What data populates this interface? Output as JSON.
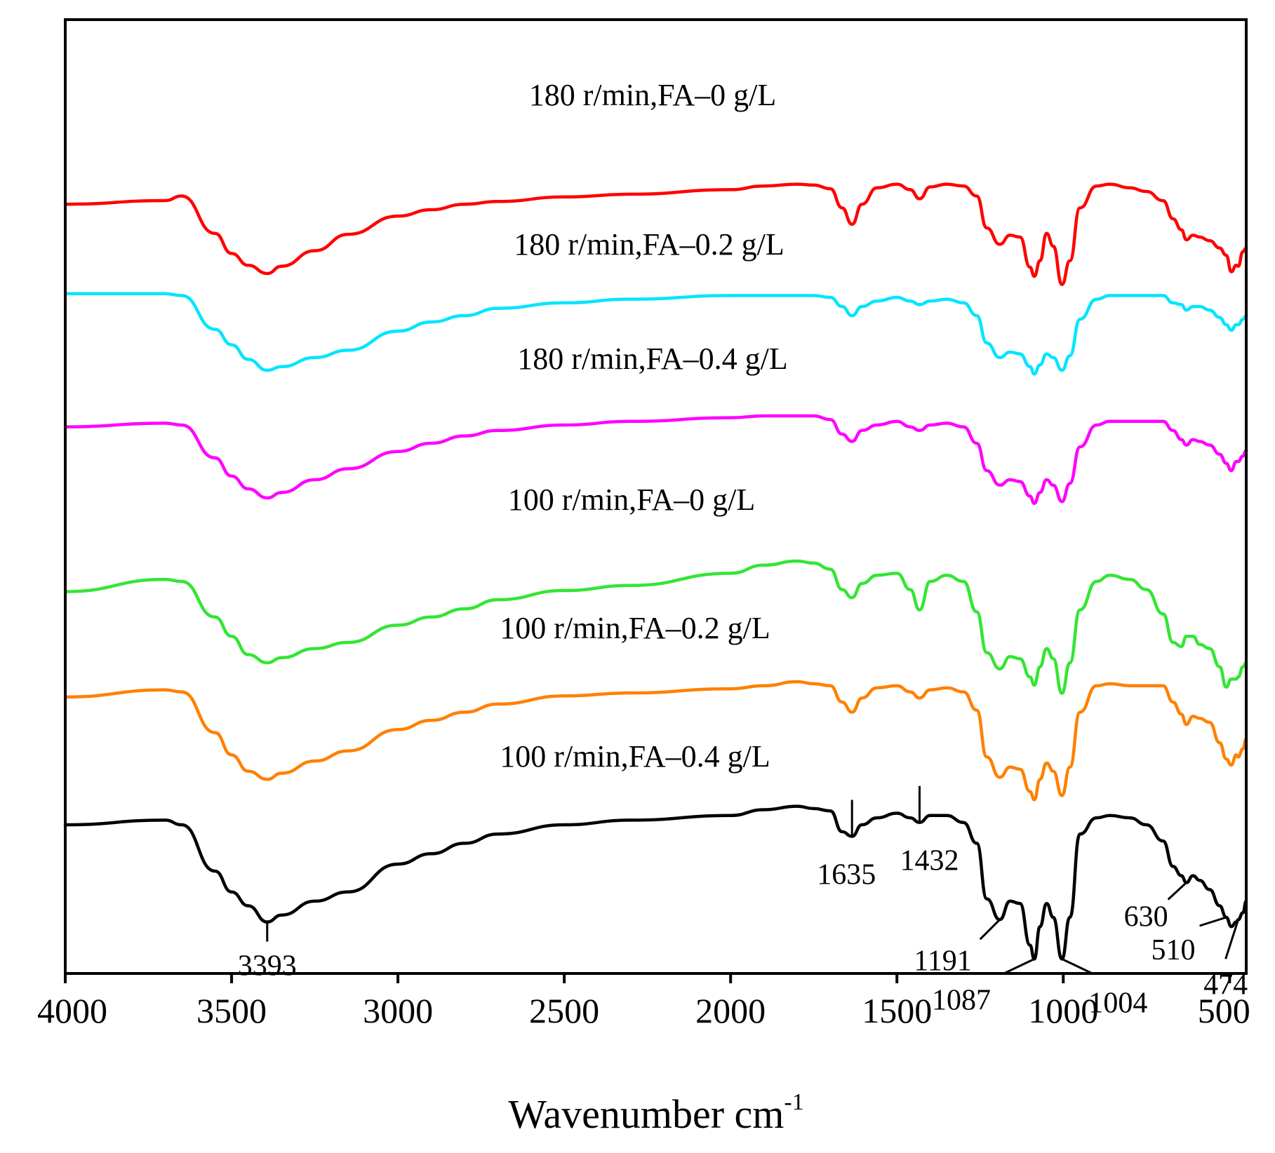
{
  "chart_data": {
    "type": "line",
    "title": "",
    "xlabel": "Wavenumber cm",
    "xlabel_superscript": "-1",
    "ylabel": "",
    "xlim": [
      4000,
      450
    ],
    "x_reversed": true,
    "y_stacked_offset_spectra": true,
    "xticks": [
      4000,
      3500,
      3000,
      2500,
      2000,
      1500,
      1000,
      500
    ],
    "xtick_labels": [
      "4000",
      "3500",
      "3000",
      "2500",
      "2000",
      "1500",
      "1000",
      "500"
    ],
    "series": [
      {
        "name": "180 r/min,FA-0 g/L",
        "color": "#ff0000",
        "x": [
          4000,
          3700,
          3650,
          3550,
          3500,
          3450,
          3393,
          3350,
          3250,
          3150,
          3000,
          2900,
          2800,
          2700,
          2500,
          2300,
          2000,
          1900,
          1800,
          1750,
          1700,
          1665,
          1635,
          1605,
          1560,
          1500,
          1460,
          1432,
          1400,
          1350,
          1300,
          1260,
          1230,
          1191,
          1160,
          1130,
          1100,
          1087,
          1070,
          1050,
          1030,
          1004,
          980,
          950,
          900,
          860,
          800,
          750,
          700,
          670,
          645,
          630,
          610,
          590,
          560,
          530,
          510,
          495,
          480,
          474,
          460,
          450
        ],
        "y": [
          24,
          20,
          15,
          56,
          78,
          91,
          100,
          92,
          75,
          57,
          37,
          30,
          24,
          21,
          16,
          13,
          8,
          4,
          2,
          3,
          7,
          28,
          46,
          24,
          6,
          2,
          8,
          18,
          5,
          2,
          4,
          15,
          50,
          68,
          58,
          60,
          93,
          103,
          86,
          56,
          70,
          112,
          86,
          28,
          4,
          2,
          6,
          10,
          20,
          40,
          52,
          63,
          58,
          60,
          64,
          72,
          80,
          98,
          91,
          92,
          76,
          72
        ]
      },
      {
        "name": "180 r/min,FA-0.2 g/L",
        "color": "#00e5ff",
        "x": [
          4000,
          3700,
          3650,
          3550,
          3500,
          3450,
          3393,
          3350,
          3250,
          3150,
          3000,
          2900,
          2800,
          2700,
          2500,
          2300,
          2000,
          1900,
          1800,
          1750,
          1700,
          1665,
          1635,
          1605,
          1560,
          1500,
          1460,
          1432,
          1400,
          1350,
          1300,
          1260,
          1230,
          1191,
          1160,
          1130,
          1100,
          1087,
          1070,
          1050,
          1030,
          1004,
          980,
          950,
          900,
          860,
          800,
          750,
          700,
          670,
          645,
          630,
          610,
          590,
          560,
          530,
          510,
          495,
          480,
          474,
          460,
          450
        ],
        "y": [
          16,
          16,
          18,
          55,
          72,
          88,
          100,
          96,
          86,
          78,
          57,
          47,
          40,
          32,
          26,
          22,
          18,
          18,
          18,
          18,
          20,
          30,
          40,
          30,
          24,
          20,
          24,
          28,
          24,
          22,
          26,
          40,
          70,
          86,
          80,
          82,
          96,
          104,
          94,
          82,
          86,
          100,
          84,
          44,
          22,
          18,
          18,
          18,
          18,
          26,
          28,
          34,
          30,
          30,
          34,
          42,
          50,
          56,
          50,
          50,
          44,
          40
        ]
      },
      {
        "name": "180 r/min,FA-0.4 g/L",
        "color": "#ff00ff",
        "x": [
          4000,
          3700,
          3650,
          3550,
          3500,
          3450,
          3393,
          3350,
          3250,
          3150,
          3000,
          2900,
          2800,
          2700,
          2500,
          2300,
          2000,
          1900,
          1800,
          1750,
          1700,
          1665,
          1635,
          1605,
          1560,
          1500,
          1460,
          1432,
          1400,
          1350,
          1300,
          1260,
          1230,
          1191,
          1160,
          1130,
          1100,
          1087,
          1070,
          1050,
          1030,
          1004,
          980,
          950,
          900,
          860,
          800,
          750,
          700,
          670,
          645,
          630,
          610,
          590,
          560,
          530,
          510,
          495,
          480,
          474,
          460,
          450
        ],
        "y": [
          22,
          18,
          20,
          56,
          76,
          90,
          100,
          94,
          80,
          68,
          49,
          40,
          32,
          26,
          20,
          16,
          12,
          10,
          10,
          10,
          14,
          30,
          38,
          26,
          20,
          16,
          22,
          26,
          20,
          18,
          22,
          40,
          70,
          86,
          80,
          82,
          98,
          106,
          94,
          80,
          86,
          104,
          84,
          44,
          20,
          16,
          16,
          16,
          16,
          26,
          36,
          42,
          36,
          38,
          42,
          52,
          62,
          70,
          60,
          60,
          54,
          48
        ]
      },
      {
        "name": "100 r/min,FA-0 g/L",
        "color": "#33e633",
        "x": [
          4000,
          3700,
          3650,
          3550,
          3500,
          3450,
          3393,
          3350,
          3250,
          3150,
          3000,
          2900,
          2800,
          2700,
          2500,
          2300,
          2000,
          1900,
          1800,
          1750,
          1700,
          1665,
          1635,
          1605,
          1560,
          1500,
          1460,
          1432,
          1400,
          1350,
          1300,
          1260,
          1230,
          1191,
          1160,
          1130,
          1100,
          1087,
          1070,
          1050,
          1030,
          1004,
          980,
          950,
          900,
          860,
          800,
          750,
          700,
          670,
          645,
          630,
          610,
          590,
          560,
          530,
          510,
          495,
          480,
          474,
          460,
          450
        ],
        "y": [
          30,
          18,
          20,
          55,
          74,
          92,
          100,
          95,
          86,
          80,
          63,
          55,
          47,
          38,
          29,
          24,
          12,
          4,
          0,
          2,
          8,
          28,
          36,
          22,
          14,
          12,
          28,
          48,
          20,
          14,
          20,
          50,
          90,
          106,
          94,
          96,
          114,
          122,
          104,
          86,
          96,
          130,
          100,
          48,
          20,
          14,
          18,
          28,
          52,
          80,
          84,
          74,
          74,
          82,
          86,
          104,
          124,
          116,
          116,
          114,
          104,
          100
        ]
      },
      {
        "name": "100 r/min,FA-0.2 g/L",
        "color": "#ff8000",
        "x": [
          4000,
          3700,
          3650,
          3550,
          3500,
          3450,
          3393,
          3350,
          3250,
          3150,
          3000,
          2900,
          2800,
          2700,
          2500,
          2300,
          2000,
          1900,
          1800,
          1750,
          1700,
          1665,
          1635,
          1605,
          1560,
          1500,
          1460,
          1432,
          1400,
          1350,
          1300,
          1260,
          1230,
          1191,
          1160,
          1130,
          1100,
          1087,
          1070,
          1050,
          1030,
          1004,
          980,
          950,
          900,
          860,
          800,
          750,
          700,
          670,
          645,
          630,
          610,
          590,
          560,
          530,
          510,
          495,
          480,
          474,
          460,
          450
        ],
        "y": [
          15,
          8,
          10,
          50,
          72,
          88,
          96,
          90,
          78,
          68,
          47,
          38,
          30,
          22,
          14,
          11,
          7,
          4,
          0,
          2,
          4,
          20,
          30,
          16,
          6,
          4,
          10,
          16,
          8,
          6,
          10,
          28,
          74,
          94,
          84,
          86,
          108,
          116,
          96,
          80,
          88,
          112,
          84,
          30,
          4,
          2,
          4,
          4,
          4,
          20,
          32,
          42,
          34,
          36,
          40,
          60,
          76,
          82,
          72,
          74,
          66,
          56
        ]
      },
      {
        "name": "100 r/min,FA-0.4 g/L",
        "color": "#000000",
        "x": [
          4000,
          3700,
          3650,
          3550,
          3500,
          3450,
          3393,
          3350,
          3250,
          3150,
          3000,
          2900,
          2800,
          2700,
          2500,
          2300,
          2000,
          1900,
          1800,
          1750,
          1700,
          1665,
          1635,
          1605,
          1560,
          1500,
          1460,
          1432,
          1400,
          1350,
          1300,
          1260,
          1230,
          1191,
          1160,
          1130,
          1100,
          1087,
          1070,
          1050,
          1030,
          1004,
          980,
          950,
          900,
          860,
          800,
          750,
          700,
          670,
          645,
          630,
          610,
          590,
          560,
          530,
          510,
          495,
          480,
          474,
          460,
          450
        ],
        "y": [
          20,
          16,
          20,
          60,
          78,
          90,
          104,
          98,
          86,
          78,
          54,
          45,
          36,
          28,
          20,
          16,
          12,
          7,
          4,
          6,
          8,
          26,
          30,
          20,
          14,
          10,
          14,
          18,
          12,
          12,
          18,
          36,
          84,
          102,
          86,
          88,
          124,
          136,
          108,
          88,
          100,
          136,
          100,
          28,
          14,
          12,
          14,
          20,
          34,
          56,
          64,
          70,
          64,
          68,
          76,
          90,
          100,
          108,
          104,
          102,
          96,
          86
        ]
      }
    ],
    "series_labels": [
      "180 r/min,FA–0 g/L",
      "180 r/min,FA–0.2 g/L",
      "180 r/min,FA–0.4 g/L",
      "100 r/min,FA–0 g/L",
      "100 r/min,FA–0.2 g/L",
      "100 r/min,FA–0.4 g/L"
    ],
    "peak_annotations": [
      {
        "label": "3393",
        "x": 3393
      },
      {
        "label": "1635",
        "x": 1635
      },
      {
        "label": "1432",
        "x": 1432
      },
      {
        "label": "1191",
        "x": 1191
      },
      {
        "label": "1087",
        "x": 1087
      },
      {
        "label": "1004",
        "x": 1004
      },
      {
        "label": "630",
        "x": 630
      },
      {
        "label": "510",
        "x": 510
      },
      {
        "label": "474",
        "x": 474
      }
    ]
  }
}
